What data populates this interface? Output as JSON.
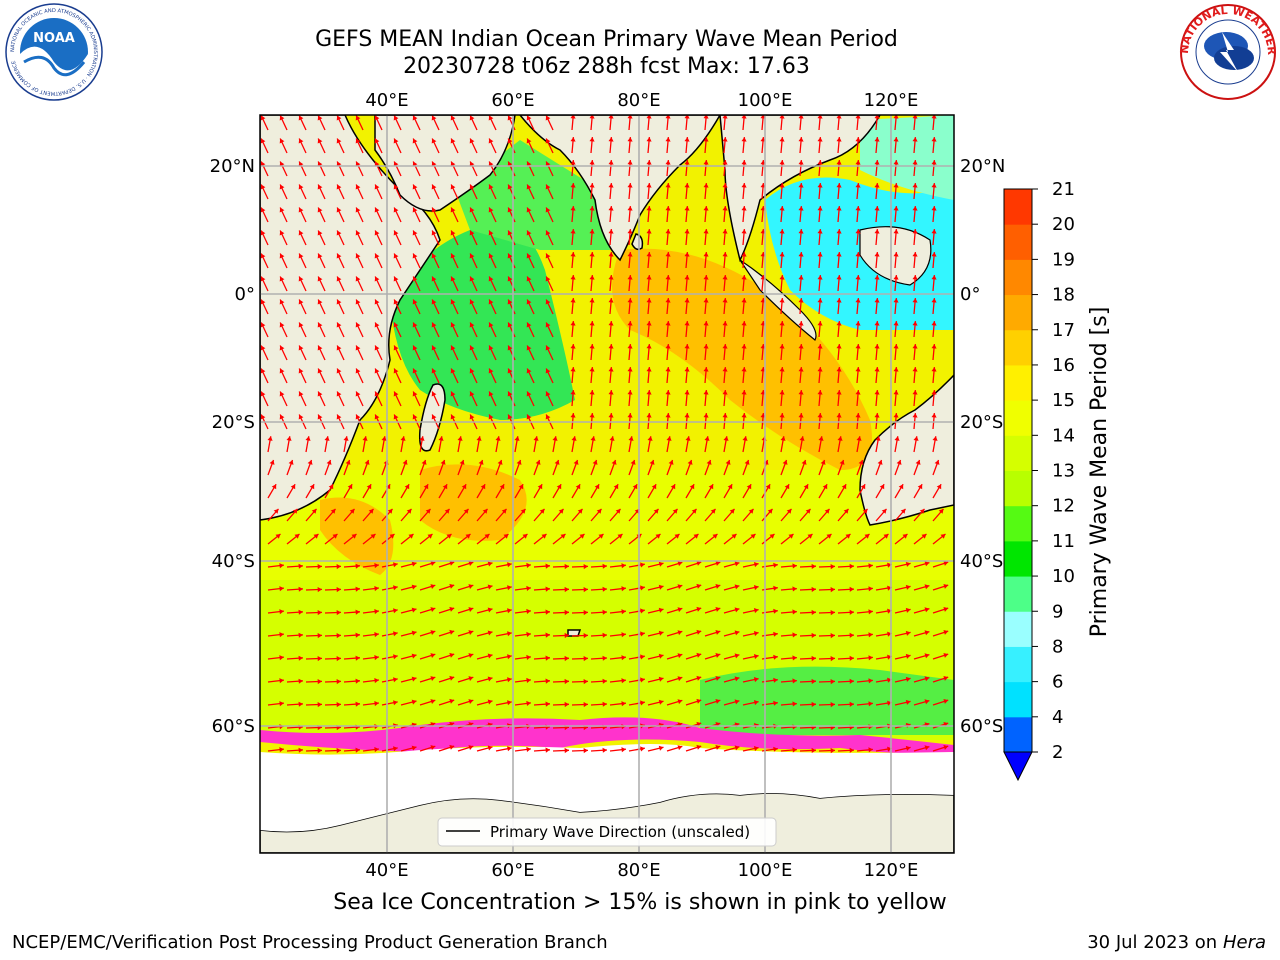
{
  "title": {
    "line1": "GEFS MEAN Indian Ocean Primary Wave Mean Period",
    "line2": "20230728 t06z 288h fcst   Max: 17.63"
  },
  "map": {
    "lon_labels": [
      "40°E",
      "60°E",
      "80°E",
      "100°E",
      "120°E"
    ],
    "lat_labels": [
      "20°N",
      "0°",
      "20°S",
      "40°S",
      "60°S"
    ],
    "legend_label": "Primary Wave Direction (unscaled)",
    "arrow_color": "#ff0000",
    "land_color": "#efeedd",
    "ice_colors": [
      "#ff00ff",
      "#ff69b4",
      "#ffa07a",
      "#ffff00"
    ]
  },
  "colorbar": {
    "label": "Primary Wave Mean Period [s]",
    "ticks": [
      "2",
      "4",
      "6",
      "8",
      "9",
      "10",
      "11",
      "12",
      "13",
      "14",
      "15",
      "16",
      "17",
      "18",
      "19",
      "20",
      "21"
    ],
    "colors": [
      "#0063ff",
      "#00e1ff",
      "#37f0ff",
      "#9affff",
      "#4dff88",
      "#00e600",
      "#55fa13",
      "#b8ff00",
      "#d5ff00",
      "#f0ff00",
      "#fff000",
      "#ffd000",
      "#ffaa00",
      "#ff8800",
      "#ff5f00",
      "#ff3800"
    ],
    "extend_color": "#0000ff"
  },
  "caption": "Sea Ice Concentration > 15% is shown in pink to yellow",
  "footer": {
    "left": "NCEP/EMC/Verification Post Processing Product Generation Branch",
    "right_date": "30 Jul 2023 on ",
    "right_machine": "Hera"
  },
  "logos": {
    "noaa": "NOAA",
    "noaa_ring": "NATIONAL OCEANIC AND ATMOSPHERIC ADMINISTRATION · U.S. DEPARTMENT OF COMMERCE",
    "nws_ring": "NATIONAL WEATHER SERVICE"
  }
}
